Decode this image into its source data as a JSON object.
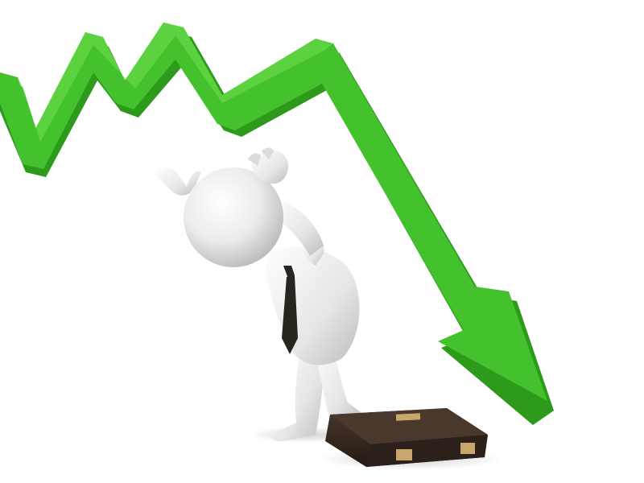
{
  "scene": {
    "subject": "3d-figure-in-despair",
    "trend_direction": "down",
    "colors": {
      "background": "#ffffff",
      "arrow_main": "#43c22d",
      "arrow_light": "#6fdc4e",
      "arrow_dark": "#2e9a1c",
      "figure": "#ececec",
      "figure_shadow": "#bdbdbd",
      "tie": "#2a241f",
      "briefcase": "#3a2c24",
      "briefcase_dark": "#241a14",
      "clasp": "#c9a66b"
    },
    "icons": [
      "falling-trend-arrow-icon",
      "person-figure-icon",
      "necktie-icon",
      "briefcase-icon"
    ]
  }
}
